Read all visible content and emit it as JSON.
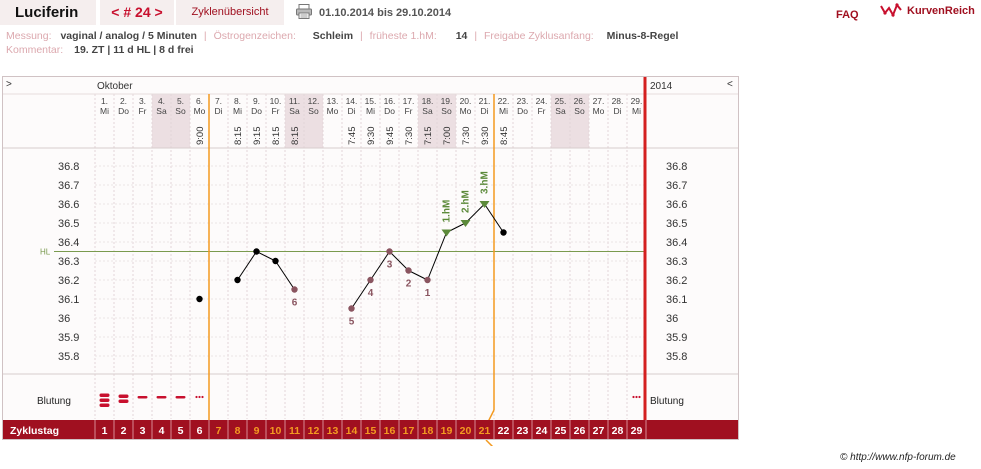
{
  "header": {
    "user_name": "Luciferin",
    "cycle_label": "< # 24 >",
    "overview_label": "Zyklenübersicht",
    "print_icon": "printer-icon",
    "date_range": "01.10.2014 bis 29.10.2014",
    "faq_label": "FAQ",
    "logo_icon": "cycle-curve-icon",
    "logo_text": "KurvenReich"
  },
  "info": {
    "messung_key": "Messung:",
    "messung_value": "vaginal / analog / 5 Minuten",
    "oestrogen_key": "Östrogenzeichen:",
    "oestrogen_value": "Schleim",
    "fruehest_key": "früheste 1.hM:",
    "fruehest_value": "14",
    "freigabe_key": "Freigabe Zyklusanfang:",
    "freigabe_value": "Minus-8-Regel",
    "kommentar_key": "Kommentar:",
    "kommentar_value": "19. ZT | 11 d HL | 8 d frei"
  },
  "colors": {
    "accent": "#a01020",
    "zyklus_bar": "#a01020",
    "weekend_shade": "#ecdfe2",
    "temp_line": "#000000",
    "hl_line": "#7a9a4e",
    "marker_green": "#5c8a3a",
    "vertical_orange": "#f39a20",
    "end_line": "#d42020",
    "bleeding": "#c8102e",
    "excluded_point": "#8a5560"
  },
  "chart_data": {
    "type": "line",
    "month_label": "Oktober",
    "year_label": "2014",
    "left_arrow": ">",
    "right_arrow": "<",
    "hl_label": "HL",
    "blutung_label": "Blutung",
    "zyklustag_label": "Zyklustag",
    "ylim": [
      35.7,
      36.9
    ],
    "yticks": [
      "36.8",
      "36.7",
      "36.6",
      "36.5",
      "36.4",
      "36.3",
      "36.2",
      "36.1",
      "36",
      "35.9",
      "35.8"
    ],
    "ytick_values": [
      36.8,
      36.7,
      36.6,
      36.5,
      36.4,
      36.3,
      36.2,
      36.1,
      36.0,
      35.9,
      35.8
    ],
    "hl_value": 36.35,
    "days": [
      {
        "date": "1.",
        "wd": "Mi",
        "time": "",
        "weekend": false
      },
      {
        "date": "2.",
        "wd": "Do",
        "time": "",
        "weekend": false
      },
      {
        "date": "3.",
        "wd": "Fr",
        "time": "",
        "weekend": false
      },
      {
        "date": "4.",
        "wd": "Sa",
        "time": "",
        "weekend": true
      },
      {
        "date": "5.",
        "wd": "So",
        "time": "",
        "weekend": true
      },
      {
        "date": "6.",
        "wd": "Mo",
        "time": "9:00",
        "weekend": false
      },
      {
        "date": "7.",
        "wd": "Di",
        "time": "",
        "weekend": false
      },
      {
        "date": "8.",
        "wd": "Mi",
        "time": "8:15",
        "weekend": false
      },
      {
        "date": "9.",
        "wd": "Do",
        "time": "9:15",
        "weekend": false
      },
      {
        "date": "10.",
        "wd": "Fr",
        "time": "8:15",
        "weekend": false
      },
      {
        "date": "11.",
        "wd": "Sa",
        "time": "8:15",
        "weekend": true
      },
      {
        "date": "12.",
        "wd": "So",
        "time": "",
        "weekend": true
      },
      {
        "date": "13.",
        "wd": "Mo",
        "time": "",
        "weekend": false
      },
      {
        "date": "14.",
        "wd": "Di",
        "time": "7:45",
        "weekend": false
      },
      {
        "date": "15.",
        "wd": "Mi",
        "time": "9:30",
        "weekend": false
      },
      {
        "date": "16.",
        "wd": "Do",
        "time": "9:45",
        "weekend": false
      },
      {
        "date": "17.",
        "wd": "Fr",
        "time": "7:30",
        "weekend": false
      },
      {
        "date": "18.",
        "wd": "Sa",
        "time": "7:15",
        "weekend": true
      },
      {
        "date": "19.",
        "wd": "So",
        "time": "7:00",
        "weekend": true
      },
      {
        "date": "20.",
        "wd": "Mo",
        "time": "7:30",
        "weekend": false
      },
      {
        "date": "21.",
        "wd": "Di",
        "time": "9:30",
        "weekend": false
      },
      {
        "date": "22.",
        "wd": "Mi",
        "time": "8:45",
        "weekend": false
      },
      {
        "date": "23.",
        "wd": "Do",
        "time": "",
        "weekend": false
      },
      {
        "date": "24.",
        "wd": "Fr",
        "time": "",
        "weekend": false
      },
      {
        "date": "25.",
        "wd": "Sa",
        "time": "",
        "weekend": true
      },
      {
        "date": "26.",
        "wd": "So",
        "time": "",
        "weekend": true
      },
      {
        "date": "27.",
        "wd": "Mo",
        "time": "",
        "weekend": false
      },
      {
        "date": "28.",
        "wd": "Di",
        "time": "",
        "weekend": false
      },
      {
        "date": "29.",
        "wd": "Mi",
        "time": "",
        "weekend": false
      }
    ],
    "series": [
      {
        "points": [
          {
            "day": 6,
            "temp": 36.1,
            "style": "single",
            "label": ""
          },
          {
            "day": 8,
            "temp": 36.2,
            "style": "normal",
            "label": ""
          },
          {
            "day": 9,
            "temp": 36.35,
            "style": "normal",
            "label": ""
          },
          {
            "day": 10,
            "temp": 36.3,
            "style": "normal",
            "label": ""
          },
          {
            "day": 11,
            "temp": 36.15,
            "style": "excluded",
            "label": "6"
          },
          {
            "day": 14,
            "temp": 36.05,
            "style": "excluded",
            "label": "5"
          },
          {
            "day": 15,
            "temp": 36.2,
            "style": "excluded",
            "label": "4"
          },
          {
            "day": 16,
            "temp": 36.35,
            "style": "excluded",
            "label": "3"
          },
          {
            "day": 17,
            "temp": 36.25,
            "style": "excluded",
            "label": "2"
          },
          {
            "day": 18,
            "temp": 36.2,
            "style": "excluded",
            "label": "1"
          },
          {
            "day": 19,
            "temp": 36.45,
            "style": "marker",
            "label": "1.hM"
          },
          {
            "day": 20,
            "temp": 36.5,
            "style": "marker",
            "label": "2.hM"
          },
          {
            "day": 21,
            "temp": 36.6,
            "style": "marker",
            "label": "3.hM"
          },
          {
            "day": 22,
            "temp": 36.45,
            "style": "normal",
            "label": ""
          }
        ]
      }
    ],
    "bleeding": [
      {
        "day": 1,
        "level": "heavy"
      },
      {
        "day": 2,
        "level": "medium"
      },
      {
        "day": 3,
        "level": "light"
      },
      {
        "day": 4,
        "level": "light"
      },
      {
        "day": 5,
        "level": "light"
      },
      {
        "day": 6,
        "level": "spotting"
      },
      {
        "day": 29,
        "level": "spotting"
      }
    ],
    "vertical_markers": [
      {
        "after_day": 6,
        "kind": "fertile-start"
      },
      {
        "after_day": 21,
        "kind": "fertile-end"
      }
    ],
    "zyklustag": [
      "1",
      "2",
      "3",
      "4",
      "5",
      "6",
      "7",
      "8",
      "9",
      "10",
      "11",
      "12",
      "13",
      "14",
      "15",
      "16",
      "17",
      "18",
      "19",
      "20",
      "21",
      "22",
      "23",
      "24",
      "25",
      "26",
      "27",
      "28",
      "29"
    ],
    "zyklustag_orange_from": 7,
    "zyklustag_orange_to": 21
  },
  "footer": {
    "copyright": "© http://www.nfp-forum.de"
  }
}
